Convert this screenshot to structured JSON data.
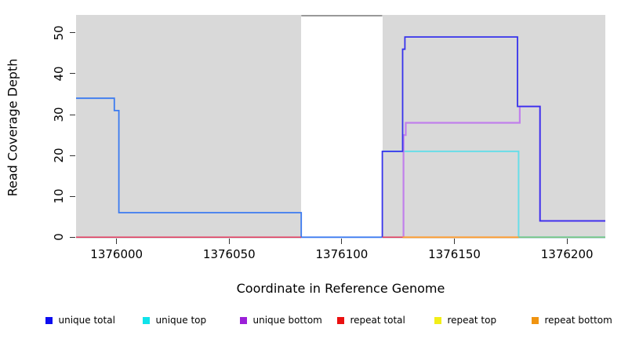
{
  "chart_data": {
    "type": "line",
    "title": "",
    "xlabel": "Coordinate in Reference Genome",
    "ylabel": "Read Coverage Depth",
    "xlim": [
      1375982,
      1376217
    ],
    "ylim": [
      -0.33,
      54.4
    ],
    "x_ticks": [
      1376000,
      1376050,
      1376100,
      1376150,
      1376200
    ],
    "y_ticks": [
      0,
      10,
      20,
      30,
      40,
      50
    ],
    "plot_background": "#d9d9d9",
    "grid": "off",
    "legend_position": "bottom",
    "mask_region": {
      "x0": 1376082,
      "x1": 1376118,
      "fill": "#ffffff"
    },
    "series": [
      {
        "name": "unique-total-left",
        "color": "#3c7bf0",
        "width": 1.8,
        "segments": [
          [
            [
              1375982,
              34
            ],
            [
              1375999,
              34
            ],
            [
              1375999,
              31
            ],
            [
              1376001,
              31
            ],
            [
              1376001,
              6
            ],
            [
              1376082,
              6
            ],
            [
              1376082,
              0
            ],
            [
              1376118,
              0
            ]
          ]
        ]
      },
      {
        "name": "unique-top",
        "color": "#68dde8",
        "width": 2.0,
        "segments": [
          [
            [
              1376118,
              21
            ],
            [
              1376178.5,
              21
            ],
            [
              1376178.5,
              0
            ],
            [
              1376217,
              0
            ]
          ]
        ]
      },
      {
        "name": "unique-bottom",
        "color": "#c180ec",
        "width": 2.2,
        "segments": [
          [
            [
              1376127.4,
              0
            ],
            [
              1376127.4,
              25
            ],
            [
              1376128.4,
              25
            ],
            [
              1376128.4,
              28
            ],
            [
              1376179,
              28
            ],
            [
              1376179,
              32
            ],
            [
              1376188,
              32
            ],
            [
              1376188,
              4
            ],
            [
              1376217,
              4
            ]
          ]
        ]
      },
      {
        "name": "unique-total-right",
        "color": "#3632ec",
        "width": 1.8,
        "segments": [
          [
            [
              1376118,
              0
            ],
            [
              1376118,
              21
            ],
            [
              1376127,
              21
            ],
            [
              1376127,
              46
            ],
            [
              1376128,
              46
            ],
            [
              1376128,
              49
            ],
            [
              1376178,
              49
            ],
            [
              1376178,
              32
            ],
            [
              1376188,
              32
            ],
            [
              1376188,
              4
            ],
            [
              1376217,
              4
            ]
          ]
        ]
      },
      {
        "name": "repeat-total",
        "color": "#e23a5f",
        "width": 1.5,
        "segments": [
          [
            [
              1375982,
              0
            ],
            [
              1376082,
              0
            ]
          ],
          [
            [
              1376118,
              0
            ],
            [
              1376127,
              0
            ]
          ]
        ]
      },
      {
        "name": "repeat-bottom",
        "color": "#ff9d30",
        "width": 1.8,
        "segments": [
          [
            [
              1376127,
              0
            ],
            [
              1376178.5,
              0
            ]
          ]
        ]
      },
      {
        "name": "top-strand-overlap",
        "color": "#79c37d",
        "width": 1.5,
        "segments": [
          [
            [
              1376178.5,
              0
            ],
            [
              1376217,
              0
            ]
          ]
        ]
      },
      {
        "name": "offscale-clipped-total",
        "color": "#999999",
        "width": 2.0,
        "segments": [
          [
            [
              1376082,
              54.2
            ],
            [
              1376118,
              54.2
            ]
          ]
        ]
      }
    ],
    "legend": [
      {
        "label": "unique total",
        "color": "#0d0df0"
      },
      {
        "label": "unique top",
        "color": "#0fe3ea"
      },
      {
        "label": "unique bottom",
        "color": "#9b1fd8"
      },
      {
        "label": "repeat total",
        "color": "#ea1010"
      },
      {
        "label": "repeat top",
        "color": "#f2ee18"
      },
      {
        "label": "repeat bottom",
        "color": "#f09410"
      }
    ]
  }
}
